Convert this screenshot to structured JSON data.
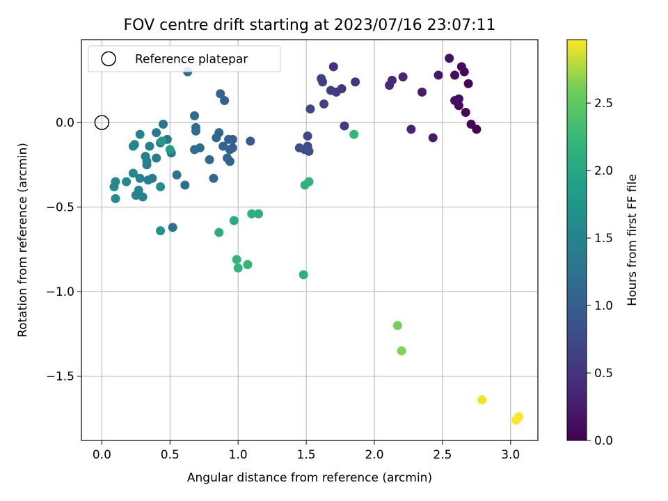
{
  "chart_data": {
    "type": "scatter",
    "title": "FOV centre drift starting at 2023/07/16 23:07:11",
    "xlabel": "Angular distance from reference (arcmin)",
    "ylabel": "Rotation from reference (arcmin)",
    "xlim": [
      -0.15,
      3.2
    ],
    "ylim": [
      -1.88,
      0.49
    ],
    "xticks": [
      0.0,
      0.5,
      1.0,
      1.5,
      2.0,
      2.5,
      3.0
    ],
    "xtick_labels": [
      "0.0",
      "0.5",
      "1.0",
      "1.5",
      "2.0",
      "2.5",
      "3.0"
    ],
    "yticks": [
      0.0,
      -0.5,
      -1.0,
      -1.5
    ],
    "ytick_labels": [
      "0.0",
      "−0.5",
      "−1.0",
      "−1.5"
    ],
    "grid": true,
    "colorbar": {
      "label": "Hours from first FF file",
      "colormap": "viridis",
      "range": [
        0.0,
        2.97
      ],
      "ticks": [
        0.0,
        0.5,
        1.0,
        1.5,
        2.0,
        2.5
      ],
      "tick_labels": [
        "0.0",
        "0.5",
        "1.0",
        "1.5",
        "2.0",
        "2.5"
      ]
    },
    "legend": {
      "position": "top-left",
      "entries": [
        "Reference platepar"
      ]
    },
    "reference_point": {
      "x": 0.0,
      "y": 0.0
    },
    "points": [
      {
        "x": 2.75,
        "y": -0.04,
        "c": 0.0
      },
      {
        "x": 2.71,
        "y": -0.01,
        "c": 0.03
      },
      {
        "x": 2.67,
        "y": 0.06,
        "c": 0.06
      },
      {
        "x": 2.62,
        "y": 0.1,
        "c": 0.09
      },
      {
        "x": 2.62,
        "y": 0.14,
        "c": 0.12
      },
      {
        "x": 2.59,
        "y": 0.13,
        "c": 0.15
      },
      {
        "x": 2.69,
        "y": 0.23,
        "c": 0.05
      },
      {
        "x": 2.66,
        "y": 0.3,
        "c": 0.07
      },
      {
        "x": 2.64,
        "y": 0.33,
        "c": 0.1
      },
      {
        "x": 2.59,
        "y": 0.28,
        "c": 0.13
      },
      {
        "x": 2.55,
        "y": 0.38,
        "c": 0.16
      },
      {
        "x": 2.47,
        "y": 0.28,
        "c": 0.2
      },
      {
        "x": 2.43,
        "y": -0.09,
        "c": 0.24
      },
      {
        "x": 2.35,
        "y": 0.18,
        "c": 0.27
      },
      {
        "x": 2.27,
        "y": -0.04,
        "c": 0.31
      },
      {
        "x": 2.21,
        "y": 0.27,
        "c": 0.34
      },
      {
        "x": 2.13,
        "y": 0.25,
        "c": 0.37
      },
      {
        "x": 2.11,
        "y": 0.22,
        "c": 0.4
      },
      {
        "x": 1.86,
        "y": 0.24,
        "c": 0.5
      },
      {
        "x": 1.76,
        "y": 0.2,
        "c": 0.53
      },
      {
        "x": 1.72,
        "y": 0.18,
        "c": 0.56
      },
      {
        "x": 1.78,
        "y": -0.02,
        "c": 0.58
      },
      {
        "x": 1.7,
        "y": 0.33,
        "c": 0.47
      },
      {
        "x": 1.68,
        "y": 0.19,
        "c": 0.6
      },
      {
        "x": 1.62,
        "y": 0.24,
        "c": 0.62
      },
      {
        "x": 1.61,
        "y": 0.26,
        "c": 0.64
      },
      {
        "x": 1.63,
        "y": 0.11,
        "c": 0.66
      },
      {
        "x": 1.53,
        "y": 0.08,
        "c": 0.7
      },
      {
        "x": 1.51,
        "y": -0.08,
        "c": 0.73
      },
      {
        "x": 1.51,
        "y": -0.14,
        "c": 0.76
      },
      {
        "x": 1.52,
        "y": -0.17,
        "c": 0.79
      },
      {
        "x": 1.49,
        "y": -0.16,
        "c": 0.81
      },
      {
        "x": 1.45,
        "y": -0.15,
        "c": 0.83
      },
      {
        "x": 1.09,
        "y": -0.11,
        "c": 0.95
      },
      {
        "x": 0.96,
        "y": -0.1,
        "c": 0.98
      },
      {
        "x": 0.96,
        "y": -0.15,
        "c": 1.0
      },
      {
        "x": 0.93,
        "y": -0.1,
        "c": 1.02
      },
      {
        "x": 0.94,
        "y": -0.16,
        "c": 1.03
      },
      {
        "x": 0.9,
        "y": 0.13,
        "c": 1.05
      },
      {
        "x": 0.87,
        "y": 0.17,
        "c": 1.06
      },
      {
        "x": 0.89,
        "y": -0.14,
        "c": 1.07
      },
      {
        "x": 0.92,
        "y": -0.21,
        "c": 1.08
      },
      {
        "x": 0.94,
        "y": -0.23,
        "c": 1.09
      },
      {
        "x": 0.86,
        "y": -0.06,
        "c": 1.1
      },
      {
        "x": 0.84,
        "y": -0.09,
        "c": 1.11
      },
      {
        "x": 0.82,
        "y": -0.33,
        "c": 1.12
      },
      {
        "x": 0.79,
        "y": -0.22,
        "c": 1.13
      },
      {
        "x": 0.72,
        "y": -0.15,
        "c": 1.15
      },
      {
        "x": 0.69,
        "y": -0.03,
        "c": 1.16
      },
      {
        "x": 0.69,
        "y": -0.05,
        "c": 1.17
      },
      {
        "x": 0.68,
        "y": 0.04,
        "c": 1.18
      },
      {
        "x": 0.68,
        "y": -0.16,
        "c": 1.19
      },
      {
        "x": 0.63,
        "y": 0.3,
        "c": 1.22
      },
      {
        "x": 0.61,
        "y": -0.37,
        "c": 1.21
      },
      {
        "x": 0.55,
        "y": -0.31,
        "c": 1.25
      },
      {
        "x": 0.52,
        "y": -0.62,
        "c": 1.26
      },
      {
        "x": 0.51,
        "y": -0.18,
        "c": 1.28
      },
      {
        "x": 0.48,
        "y": -0.1,
        "c": 1.3
      },
      {
        "x": 0.45,
        "y": -0.01,
        "c": 1.32
      },
      {
        "x": 0.43,
        "y": -0.12,
        "c": 1.34
      },
      {
        "x": 0.4,
        "y": -0.06,
        "c": 1.36
      },
      {
        "x": 0.4,
        "y": -0.21,
        "c": 1.37
      },
      {
        "x": 0.37,
        "y": -0.33,
        "c": 1.39
      },
      {
        "x": 0.34,
        "y": -0.34,
        "c": 1.41
      },
      {
        "x": 0.33,
        "y": -0.25,
        "c": 1.42
      },
      {
        "x": 0.32,
        "y": -0.2,
        "c": 1.44
      },
      {
        "x": 0.33,
        "y": -0.23,
        "c": 1.45
      },
      {
        "x": 0.35,
        "y": -0.14,
        "c": 1.46
      },
      {
        "x": 0.3,
        "y": -0.44,
        "c": 1.48
      },
      {
        "x": 0.28,
        "y": -0.07,
        "c": 1.49
      },
      {
        "x": 0.28,
        "y": -0.33,
        "c": 1.5
      },
      {
        "x": 0.27,
        "y": -0.4,
        "c": 1.51
      },
      {
        "x": 0.25,
        "y": -0.43,
        "c": 1.52
      },
      {
        "x": 0.24,
        "y": -0.13,
        "c": 1.53
      },
      {
        "x": 0.23,
        "y": -0.3,
        "c": 1.54
      },
      {
        "x": 0.23,
        "y": -0.14,
        "c": 1.55
      },
      {
        "x": 0.18,
        "y": -0.35,
        "c": 1.56
      },
      {
        "x": 0.1,
        "y": -0.35,
        "c": 1.57
      },
      {
        "x": 0.09,
        "y": -0.38,
        "c": 1.58
      },
      {
        "x": 0.1,
        "y": -0.45,
        "c": 1.59
      },
      {
        "x": 0.43,
        "y": -0.38,
        "c": 1.65
      },
      {
        "x": 0.43,
        "y": -0.64,
        "c": 1.68
      },
      {
        "x": 0.44,
        "y": -0.11,
        "c": 1.78
      },
      {
        "x": 0.5,
        "y": -0.16,
        "c": 1.85
      },
      {
        "x": 1.85,
        "y": -0.07,
        "c": 2.22
      },
      {
        "x": 1.52,
        "y": -0.35,
        "c": 2.14
      },
      {
        "x": 1.49,
        "y": -0.37,
        "c": 2.16
      },
      {
        "x": 1.15,
        "y": -0.54,
        "c": 2.1
      },
      {
        "x": 1.1,
        "y": -0.54,
        "c": 2.11
      },
      {
        "x": 0.97,
        "y": -0.58,
        "c": 2.03
      },
      {
        "x": 0.86,
        "y": -0.65,
        "c": 2.05
      },
      {
        "x": 0.99,
        "y": -0.81,
        "c": 2.18
      },
      {
        "x": 1.0,
        "y": -0.86,
        "c": 2.19
      },
      {
        "x": 1.07,
        "y": -0.84,
        "c": 2.2
      },
      {
        "x": 1.48,
        "y": -0.9,
        "c": 2.12
      },
      {
        "x": 2.17,
        "y": -1.2,
        "c": 2.62
      },
      {
        "x": 2.2,
        "y": -1.35,
        "c": 2.65
      },
      {
        "x": 2.79,
        "y": -1.64,
        "c": 2.93
      },
      {
        "x": 3.06,
        "y": -1.74,
        "c": 2.95
      },
      {
        "x": 3.04,
        "y": -1.76,
        "c": 2.97
      }
    ]
  }
}
